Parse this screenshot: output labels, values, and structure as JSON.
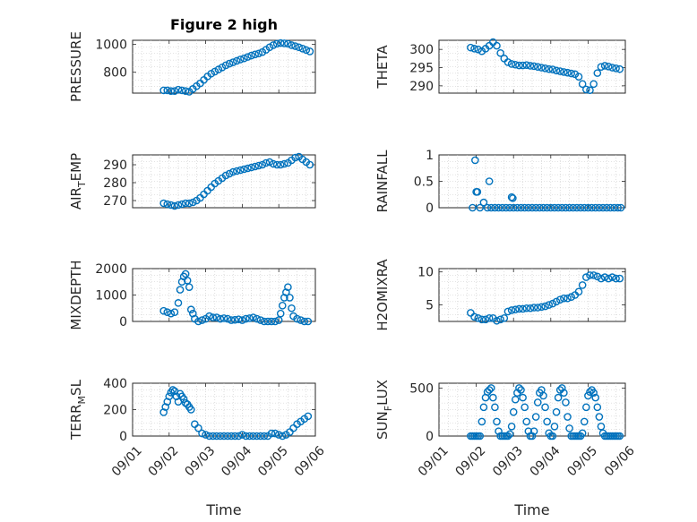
{
  "colors": {
    "marker": "#0072BD",
    "axis": "#262626",
    "grid": "#c8c8c8"
  },
  "chart_data": [
    {
      "id": "pressure",
      "type": "scatter",
      "title": "Figure 2 high",
      "ylabel": "PRESSURE",
      "ylabel_sub": "",
      "ylabel_tail": "",
      "xlabel": "",
      "xlim": [
        1,
        6
      ],
      "ylim": [
        650,
        1030
      ],
      "yticks": [
        800,
        1000
      ],
      "grid": true,
      "x": [
        1.85,
        1.95,
        2.05,
        2.15,
        2.25,
        2.35,
        2.45,
        2.55,
        2.65,
        2.75,
        2.85,
        2.95,
        3.05,
        3.15,
        3.25,
        3.35,
        3.45,
        3.55,
        3.65,
        3.75,
        3.85,
        3.95,
        4.05,
        4.15,
        4.25,
        4.35,
        4.45,
        4.55,
        4.65,
        4.75,
        4.85,
        4.95,
        5.05,
        5.15,
        5.25,
        5.35,
        5.45,
        5.55,
        5.65,
        5.75,
        5.85
      ],
      "y": [
        670,
        670,
        665,
        665,
        675,
        670,
        665,
        660,
        680,
        700,
        720,
        745,
        770,
        790,
        805,
        820,
        835,
        850,
        862,
        872,
        882,
        892,
        900,
        910,
        920,
        928,
        935,
        945,
        962,
        980,
        995,
        1005,
        1010,
        1008,
        1005,
        995,
        988,
        980,
        970,
        960,
        950
      ]
    },
    {
      "id": "theta",
      "type": "scatter",
      "title": "",
      "ylabel": "THETA",
      "ylabel_sub": "",
      "ylabel_tail": "",
      "xlabel": "",
      "xlim": [
        1,
        6
      ],
      "ylim": [
        288,
        302.5
      ],
      "yticks": [
        290,
        295,
        300
      ],
      "grid": true,
      "x": [
        1.85,
        1.95,
        2.05,
        2.15,
        2.25,
        2.35,
        2.45,
        2.55,
        2.65,
        2.75,
        2.85,
        2.95,
        3.05,
        3.15,
        3.25,
        3.35,
        3.45,
        3.55,
        3.65,
        3.75,
        3.85,
        3.95,
        4.05,
        4.15,
        4.25,
        4.35,
        4.45,
        4.55,
        4.65,
        4.75,
        4.85,
        4.95,
        5.05,
        5.15,
        5.25,
        5.35,
        5.45,
        5.55,
        5.65,
        5.75,
        5.85
      ],
      "y": [
        300.5,
        300.2,
        300,
        299.5,
        300.2,
        301,
        302,
        301,
        299,
        297.5,
        296.5,
        296,
        295.8,
        295.6,
        295.6,
        295.7,
        295.5,
        295.4,
        295.2,
        295,
        294.8,
        294.6,
        294.5,
        294.2,
        294,
        293.8,
        293.6,
        293.4,
        293.2,
        292.5,
        290.5,
        289,
        288.8,
        290.5,
        293.5,
        295.2,
        295.5,
        295.3,
        295,
        294.8,
        294.6
      ]
    },
    {
      "id": "air_temp",
      "type": "scatter",
      "title": "",
      "ylabel": "AIR",
      "ylabel_sub": "T",
      "ylabel_tail": "EMP",
      "xlabel": "",
      "xlim": [
        1,
        6
      ],
      "ylim": [
        266,
        295.5
      ],
      "yticks": [
        270,
        280,
        290
      ],
      "grid": true,
      "x": [
        1.85,
        1.95,
        2.05,
        2.15,
        2.25,
        2.35,
        2.45,
        2.55,
        2.65,
        2.75,
        2.85,
        2.95,
        3.05,
        3.15,
        3.25,
        3.35,
        3.45,
        3.55,
        3.65,
        3.75,
        3.85,
        3.95,
        4.05,
        4.15,
        4.25,
        4.35,
        4.45,
        4.55,
        4.65,
        4.75,
        4.85,
        4.95,
        5.05,
        5.15,
        5.25,
        5.35,
        5.45,
        5.55,
        5.65,
        5.75,
        5.85
      ],
      "y": [
        268.5,
        268,
        267.5,
        267,
        267.5,
        268,
        268.5,
        268.5,
        269,
        270,
        271.5,
        273.5,
        275.5,
        277.5,
        279.5,
        281,
        282.5,
        284,
        285,
        286,
        286.5,
        287,
        287.5,
        288,
        288.5,
        289,
        289.5,
        290,
        291,
        291.5,
        290.5,
        290,
        290,
        290.5,
        291,
        292.5,
        294,
        294.5,
        293,
        291.5,
        290
      ]
    },
    {
      "id": "rainfall",
      "type": "scatter",
      "title": "",
      "ylabel": "RAINFALL",
      "ylabel_sub": "",
      "ylabel_tail": "",
      "xlabel": "",
      "xlim": [
        1,
        6
      ],
      "ylim": [
        0,
        1
      ],
      "yticks": [
        0,
        0.5,
        1
      ],
      "grid": true,
      "x": [
        1.9,
        1.97,
        2.0,
        2.03,
        2.1,
        2.2,
        2.3,
        2.35,
        2.4,
        2.5,
        2.6,
        2.7,
        2.8,
        2.9,
        2.95,
        2.98,
        3.0,
        3.1,
        3.2,
        3.3,
        3.4,
        3.5,
        3.6,
        3.7,
        3.8,
        3.9,
        4.0,
        4.1,
        4.2,
        4.3,
        4.4,
        4.5,
        4.6,
        4.7,
        4.8,
        4.9,
        5.0,
        5.1,
        5.2,
        5.3,
        5.4,
        5.5,
        5.6,
        5.7,
        5.8,
        5.88
      ],
      "y": [
        0,
        0.9,
        0.3,
        0.3,
        0,
        0.1,
        0,
        0.5,
        0,
        0,
        0,
        0,
        0,
        0,
        0.2,
        0.18,
        0,
        0,
        0,
        0,
        0,
        0,
        0,
        0,
        0,
        0,
        0,
        0,
        0,
        0,
        0,
        0,
        0,
        0,
        0,
        0,
        0,
        0,
        0,
        0,
        0,
        0,
        0,
        0,
        0,
        0
      ]
    },
    {
      "id": "mixdepth",
      "type": "scatter",
      "title": "",
      "ylabel": "MIXDEPTH",
      "ylabel_sub": "",
      "ylabel_tail": "",
      "xlabel": "",
      "xlim": [
        1,
        6
      ],
      "ylim": [
        0,
        2000
      ],
      "yticks": [
        0,
        1000,
        2000
      ],
      "grid": true,
      "x": [
        1.85,
        1.95,
        2.05,
        2.15,
        2.25,
        2.3,
        2.35,
        2.4,
        2.45,
        2.5,
        2.55,
        2.6,
        2.65,
        2.7,
        2.8,
        2.9,
        3.0,
        3.1,
        3.2,
        3.3,
        3.4,
        3.5,
        3.6,
        3.7,
        3.8,
        3.9,
        4.0,
        4.1,
        4.2,
        4.3,
        4.4,
        4.5,
        4.6,
        4.7,
        4.8,
        4.9,
        5.0,
        5.05,
        5.1,
        5.15,
        5.2,
        5.25,
        5.3,
        5.35,
        5.4,
        5.5,
        5.6,
        5.7,
        5.8
      ],
      "y": [
        400,
        350,
        300,
        350,
        700,
        1200,
        1500,
        1700,
        1800,
        1550,
        1300,
        450,
        300,
        100,
        0,
        50,
        100,
        200,
        150,
        150,
        100,
        120,
        100,
        50,
        60,
        80,
        50,
        100,
        120,
        150,
        100,
        50,
        0,
        0,
        0,
        0,
        50,
        300,
        600,
        900,
        1100,
        1300,
        900,
        500,
        200,
        100,
        50,
        0,
        0
      ]
    },
    {
      "id": "h2omixra",
      "type": "scatter",
      "title": "",
      "ylabel": "H2OMIXRA",
      "ylabel_sub": "",
      "ylabel_tail": "",
      "xlabel": "",
      "xlim": [
        1,
        6
      ],
      "ylim": [
        2.5,
        10.5
      ],
      "yticks": [
        5,
        10
      ],
      "grid": true,
      "x": [
        1.85,
        1.95,
        2.05,
        2.15,
        2.25,
        2.35,
        2.45,
        2.55,
        2.65,
        2.75,
        2.85,
        2.95,
        3.05,
        3.15,
        3.25,
        3.35,
        3.45,
        3.55,
        3.65,
        3.75,
        3.85,
        3.95,
        4.05,
        4.15,
        4.25,
        4.35,
        4.45,
        4.55,
        4.65,
        4.75,
        4.85,
        4.95,
        5.05,
        5.15,
        5.25,
        5.35,
        5.45,
        5.55,
        5.65,
        5.75,
        5.85
      ],
      "y": [
        3.8,
        3.2,
        3,
        2.8,
        2.8,
        3,
        3,
        2.6,
        2.8,
        3,
        4,
        4.2,
        4.3,
        4.4,
        4.4,
        4.5,
        4.5,
        4.6,
        4.6,
        4.7,
        4.8,
        5,
        5.2,
        5.5,
        5.8,
        6,
        6,
        6.2,
        6.5,
        7,
        8,
        9.2,
        9.5,
        9.5,
        9.3,
        9,
        9.2,
        9,
        9.2,
        9,
        9
      ]
    },
    {
      "id": "terr_msl",
      "type": "scatter",
      "title": "",
      "ylabel": "TERR",
      "ylabel_sub": "M",
      "ylabel_tail": "SL",
      "xlabel": "Time",
      "xlim": [
        1,
        6
      ],
      "ylim": [
        0,
        400
      ],
      "yticks": [
        0,
        200,
        400
      ],
      "grid": true,
      "xtick_values": [
        1,
        2,
        3,
        4,
        5,
        6
      ],
      "xtick_labels": [
        "09/01",
        "09/02",
        "09/03",
        "09/04",
        "09/05",
        "09/06"
      ],
      "x": [
        1.85,
        1.9,
        1.95,
        2.0,
        2.05,
        2.1,
        2.15,
        2.2,
        2.25,
        2.3,
        2.35,
        2.4,
        2.45,
        2.5,
        2.55,
        2.6,
        2.7,
        2.8,
        2.9,
        3.0,
        3.1,
        3.2,
        3.3,
        3.4,
        3.5,
        3.6,
        3.7,
        3.8,
        3.9,
        4.0,
        4.1,
        4.2,
        4.3,
        4.4,
        4.5,
        4.6,
        4.7,
        4.8,
        4.9,
        5.0,
        5.1,
        5.2,
        5.3,
        5.4,
        5.5,
        5.6,
        5.7,
        5.8
      ],
      "y": [
        180,
        220,
        260,
        300,
        330,
        350,
        340,
        300,
        260,
        320,
        300,
        280,
        250,
        240,
        220,
        200,
        90,
        60,
        20,
        10,
        0,
        0,
        0,
        0,
        0,
        0,
        0,
        0,
        0,
        10,
        0,
        0,
        0,
        0,
        0,
        0,
        0,
        20,
        20,
        10,
        0,
        10,
        30,
        60,
        90,
        110,
        130,
        150
      ]
    },
    {
      "id": "sun_flux",
      "type": "scatter",
      "title": "",
      "ylabel": "SUN",
      "ylabel_sub": "F",
      "ylabel_tail": "LUX",
      "xlabel": "Time",
      "xlim": [
        1,
        6
      ],
      "ylim": [
        0,
        550
      ],
      "yticks": [
        0,
        500
      ],
      "grid": true,
      "xtick_values": [
        1,
        2,
        3,
        4,
        5,
        6
      ],
      "xtick_labels": [
        "09/01",
        "09/02",
        "09/03",
        "09/04",
        "09/05",
        "09/06"
      ],
      "x": [
        1.85,
        1.9,
        1.95,
        2.0,
        2.05,
        2.1,
        2.15,
        2.2,
        2.25,
        2.3,
        2.35,
        2.4,
        2.45,
        2.5,
        2.55,
        2.6,
        2.65,
        2.7,
        2.75,
        2.8,
        2.85,
        2.9,
        2.95,
        3.0,
        3.05,
        3.1,
        3.15,
        3.2,
        3.25,
        3.3,
        3.35,
        3.4,
        3.45,
        3.5,
        3.55,
        3.6,
        3.65,
        3.7,
        3.75,
        3.8,
        3.85,
        3.9,
        3.95,
        4.0,
        4.05,
        4.1,
        4.15,
        4.2,
        4.25,
        4.3,
        4.35,
        4.4,
        4.45,
        4.5,
        4.55,
        4.6,
        4.65,
        4.7,
        4.75,
        4.8,
        4.85,
        4.9,
        4.95,
        5.0,
        5.05,
        5.1,
        5.15,
        5.2,
        5.25,
        5.3,
        5.35,
        5.4,
        5.45,
        5.5,
        5.55,
        5.6,
        5.65,
        5.7,
        5.75,
        5.8,
        5.85
      ],
      "y": [
        0,
        0,
        0,
        0,
        0,
        0,
        150,
        300,
        400,
        460,
        480,
        500,
        400,
        300,
        150,
        50,
        0,
        0,
        0,
        0,
        0,
        20,
        100,
        250,
        380,
        450,
        500,
        480,
        400,
        300,
        150,
        50,
        0,
        0,
        50,
        200,
        350,
        450,
        480,
        420,
        300,
        150,
        30,
        0,
        0,
        100,
        250,
        400,
        480,
        500,
        450,
        350,
        200,
        80,
        0,
        0,
        0,
        0,
        0,
        0,
        30,
        150,
        300,
        420,
        460,
        480,
        450,
        400,
        300,
        200,
        100,
        30,
        0,
        0,
        0,
        0,
        0,
        0,
        0,
        0,
        0
      ]
    }
  ]
}
